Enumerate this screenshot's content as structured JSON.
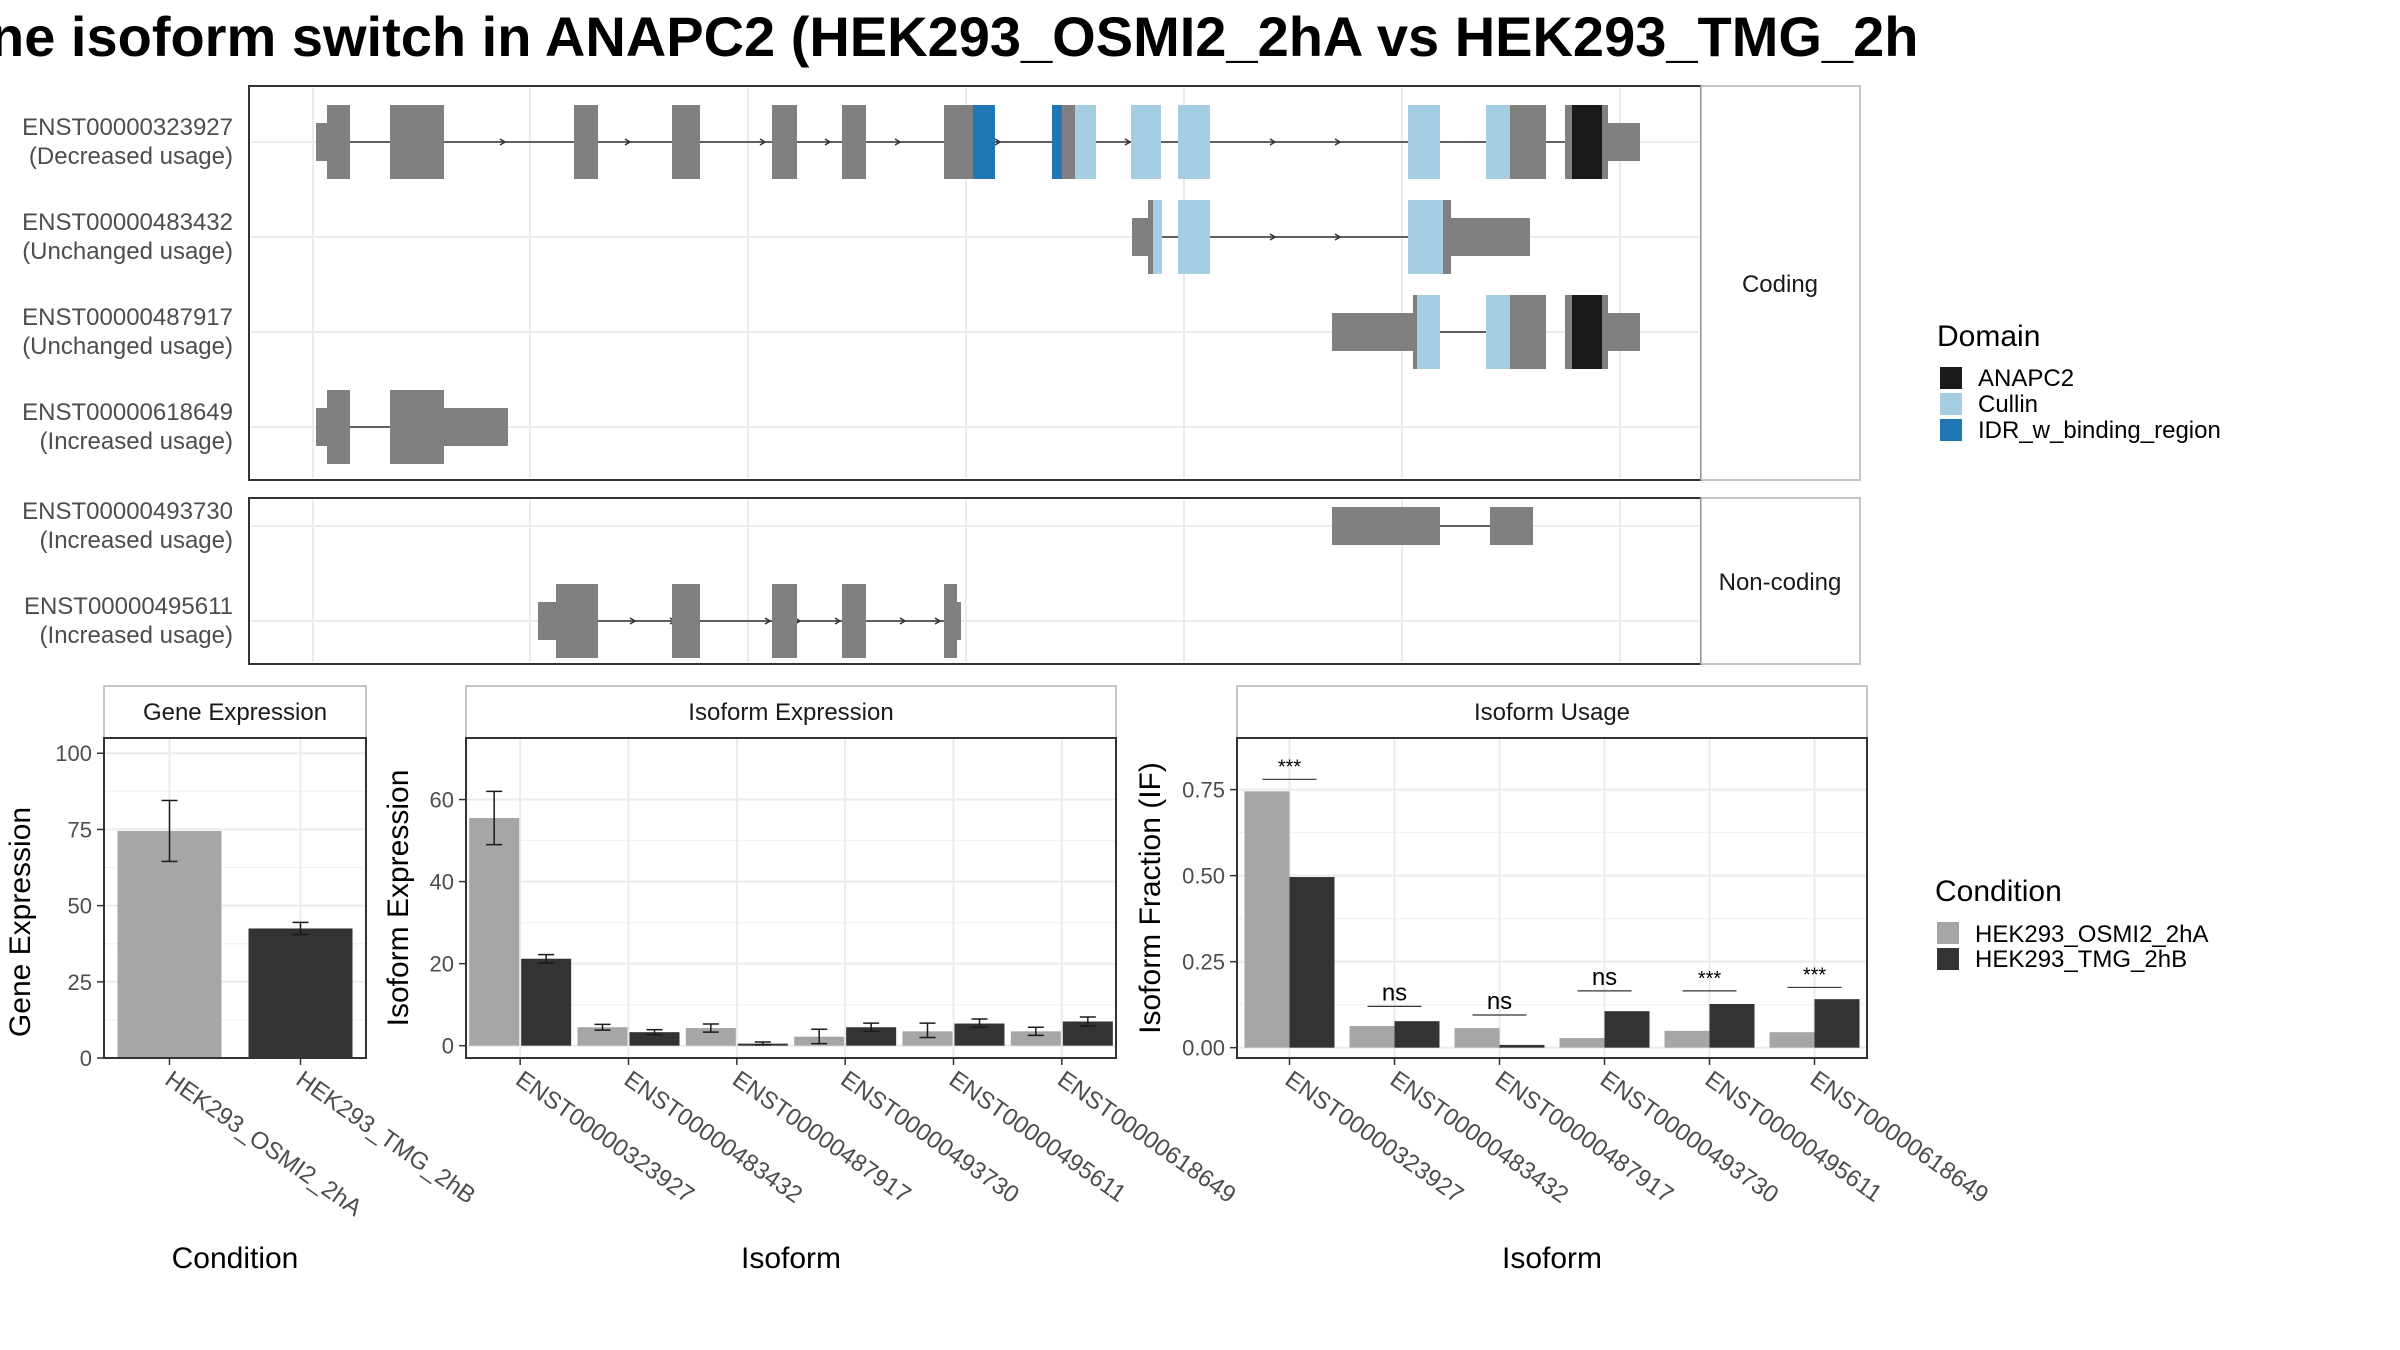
{
  "title": "ne isoform switch in ANAPC2 (HEK293_OSMI2_2hA vs HEK293_TMG_2h",
  "colors": {
    "exon": "#808080",
    "condition_a": "#a6a6a6",
    "condition_b": "#333333",
    "domain_anapc2": "#1a1a1a",
    "domain_cullin": "#a6cee3",
    "domain_idr": "#1f78b4"
  },
  "transcripts": {
    "facets": [
      {
        "label": "Coding",
        "rows": [
          {
            "id": "ENST00000323927",
            "status": "(Decreased usage)"
          },
          {
            "id": "ENST00000483432",
            "status": "(Unchanged usage)"
          },
          {
            "id": "ENST00000487917",
            "status": "(Unchanged usage)"
          },
          {
            "id": "ENST00000618649",
            "status": "(Increased usage)"
          }
        ]
      },
      {
        "label": "Non-coding",
        "rows": [
          {
            "id": "ENST00000493730",
            "status": "(Increased usage)"
          },
          {
            "id": "ENST00000495611",
            "status": "(Increased usage)"
          }
        ]
      }
    ],
    "legend": {
      "title": "Domain",
      "items": [
        {
          "label": "ANAPC2",
          "color": "#1a1a1a"
        },
        {
          "label": "Cullin",
          "color": "#a6cee3"
        },
        {
          "label": "IDR_w_binding_region",
          "color": "#1f78b4"
        }
      ]
    }
  },
  "chart_data": [
    {
      "type": "bar",
      "title": "Gene Expression",
      "xlabel": "Condition",
      "ylabel": "Gene Expression",
      "ylim": [
        0,
        105
      ],
      "yticks": [
        0,
        25,
        50,
        75,
        100
      ],
      "categories": [
        "HEK293_OSMI2_2hA",
        "HEK293_TMG_2hB"
      ],
      "values": [
        74.5,
        42.5
      ],
      "error": [
        [
          64.5,
          84.5
        ],
        [
          40.5,
          44.5
        ]
      ]
    },
    {
      "type": "bar",
      "title": "Isoform Expression",
      "xlabel": "Isoform",
      "ylabel": "Isoform Expression",
      "ylim": [
        -3,
        75
      ],
      "yticks": [
        0,
        20,
        40,
        60
      ],
      "categories": [
        "ENST00000323927",
        "ENST00000483432",
        "ENST00000487917",
        "ENST00000493730",
        "ENST00000495611",
        "ENST00000618649"
      ],
      "series": [
        {
          "name": "HEK293_OSMI2_2hA",
          "values": [
            55.5,
            4.5,
            4.3,
            2.2,
            3.5,
            3.5
          ],
          "error": [
            [
              49,
              62
            ],
            [
              3.8,
              5.2
            ],
            [
              3.3,
              5.3
            ],
            [
              0.5,
              4
            ],
            [
              2,
              5.5
            ],
            [
              2.5,
              4.5
            ]
          ]
        },
        {
          "name": "HEK293_TMG_2hB",
          "values": [
            21.2,
            3.3,
            0.5,
            4.5,
            5.4,
            5.9
          ],
          "error": [
            [
              20.2,
              22.2
            ],
            [
              2.7,
              3.9
            ],
            [
              0.2,
              0.9
            ],
            [
              3.5,
              5.5
            ],
            [
              4.5,
              6.5
            ],
            [
              4.8,
              7
            ]
          ]
        }
      ]
    },
    {
      "type": "bar",
      "title": "Isoform Usage",
      "xlabel": "Isoform",
      "ylabel": "Isoform Fraction (IF)",
      "ylim": [
        -0.03,
        0.9
      ],
      "yticks": [
        0,
        0.25,
        0.5,
        0.75
      ],
      "ytick_labels": [
        "0.00",
        "0.25",
        "0.50",
        "0.75"
      ],
      "categories": [
        "ENST00000323927",
        "ENST00000483432",
        "ENST00000487917",
        "ENST00000493730",
        "ENST00000495611",
        "ENST00000618649"
      ],
      "series": [
        {
          "name": "HEK293_OSMI2_2hA",
          "values": [
            0.745,
            0.063,
            0.057,
            0.028,
            0.049,
            0.045
          ]
        },
        {
          "name": "HEK293_TMG_2hB",
          "values": [
            0.496,
            0.077,
            0.008,
            0.106,
            0.127,
            0.141
          ]
        }
      ],
      "significance": [
        "***",
        "ns",
        "ns",
        "ns",
        "***",
        "***"
      ],
      "significance_level": [
        0.78,
        0.12,
        0.095,
        0.165,
        0.165,
        0.175
      ]
    }
  ],
  "condition_legend": {
    "title": "Condition",
    "items": [
      {
        "label": "HEK293_OSMI2_2hA",
        "color": "#a6a6a6"
      },
      {
        "label": "HEK293_TMG_2hB",
        "color": "#333333"
      }
    ]
  }
}
